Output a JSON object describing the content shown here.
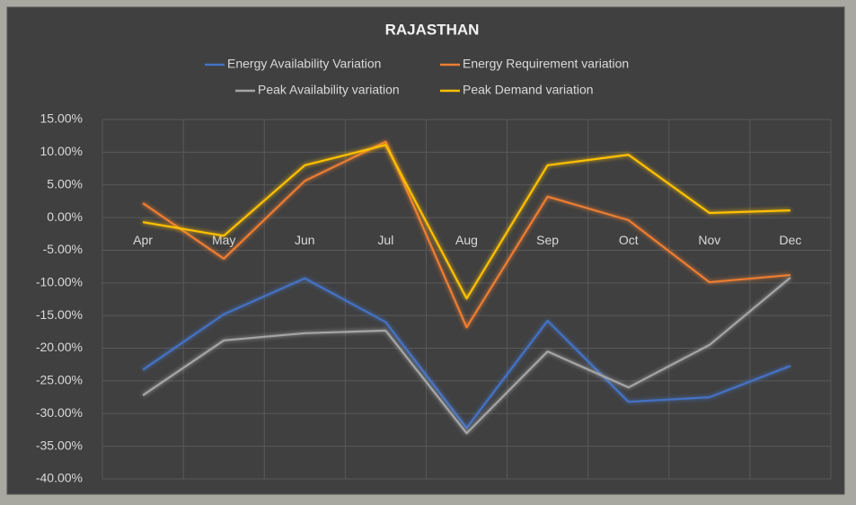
{
  "chart_data": {
    "type": "line",
    "title": "RAJASTHAN",
    "categories": [
      "Apr",
      "May",
      "Jun",
      "Jul",
      "Aug",
      "Sep",
      "Oct",
      "Nov",
      "Dec"
    ],
    "series": [
      {
        "name": "Energy Availability Variation",
        "color": "#4472c4",
        "values": [
          -23.3,
          -14.8,
          -9.3,
          -16,
          -32.2,
          -15.8,
          -28.2,
          -27.5,
          -22.7
        ]
      },
      {
        "name": "Energy Requirement variation",
        "color": "#ed7d31",
        "values": [
          2.2,
          -6.3,
          5.6,
          11.6,
          -16.8,
          3.2,
          -0.4,
          -9.9,
          -8.8
        ]
      },
      {
        "name": "Peak Availability variation",
        "color": "#a5a5a5",
        "values": [
          -27.2,
          -18.8,
          -17.7,
          -17.3,
          -33,
          -20.5,
          -26,
          -19.5,
          -9.2
        ]
      },
      {
        "name": "Peak Demand variation",
        "color": "#ffc000",
        "values": [
          -0.7,
          -2.8,
          8,
          11.1,
          -12.4,
          8,
          9.6,
          0.7,
          1.1
        ]
      }
    ],
    "ylim": [
      -40,
      15
    ],
    "yticks": [
      {
        "value": 15,
        "label": "15.00%"
      },
      {
        "value": 10,
        "label": "10.00%"
      },
      {
        "value": 5,
        "label": "5.00%"
      },
      {
        "value": 0,
        "label": "0.00%"
      },
      {
        "value": -5,
        "label": "-5.00%"
      },
      {
        "value": -10,
        "label": "-10.00%"
      },
      {
        "value": -15,
        "label": "-15.00%"
      },
      {
        "value": -20,
        "label": "-20.00%"
      },
      {
        "value": -25,
        "label": "-25.00%"
      },
      {
        "value": -30,
        "label": "-30.00%"
      },
      {
        "value": -35,
        "label": "-35.00%"
      },
      {
        "value": -40,
        "label": "-40.00%"
      }
    ],
    "grid": true
  }
}
